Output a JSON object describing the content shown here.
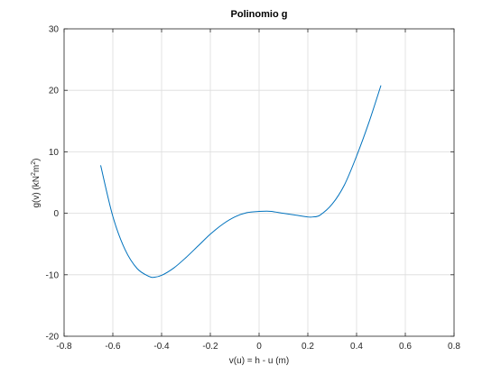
{
  "chart_data": {
    "type": "line",
    "title": "Polinomio g",
    "xlabel": "v(u) = h - u (m)",
    "ylabel": {
      "prefix": "g(v)  (kN",
      "sup1": "2",
      "mid": "m",
      "sup2": "2",
      "suffix": ")"
    },
    "xlim": [
      -0.8,
      0.8
    ],
    "ylim": [
      -20,
      30
    ],
    "xticks": [
      -0.8,
      -0.6,
      -0.4,
      -0.2,
      0,
      0.2,
      0.4,
      0.6,
      0.8
    ],
    "xtick_labels": [
      "-0.8",
      "-0.6",
      "-0.4",
      "-0.2",
      "0",
      "0.2",
      "0.4",
      "0.6",
      "0.8"
    ],
    "yticks": [
      -20,
      -10,
      0,
      10,
      20,
      30
    ],
    "ytick_labels": [
      "-20",
      "-10",
      "0",
      "10",
      "20",
      "30"
    ],
    "grid": true,
    "series": [
      {
        "color": "#0072bd",
        "x": [
          -0.65,
          -0.6,
          -0.55,
          -0.5,
          -0.45,
          -0.43,
          -0.4,
          -0.35,
          -0.3,
          -0.25,
          -0.2,
          -0.15,
          -0.1,
          -0.05,
          0,
          0.03,
          0.05,
          0.1,
          0.15,
          0.2,
          0.22,
          0.25,
          0.3,
          0.35,
          0.4,
          0.45,
          0.5
        ],
        "y": [
          7.8,
          -0.5,
          -5.9,
          -9.0,
          -10.3,
          -10.4,
          -10.1,
          -8.9,
          -7.2,
          -5.3,
          -3.4,
          -1.8,
          -0.6,
          0.1,
          0.3,
          0.35,
          0.3,
          0.0,
          -0.3,
          -0.6,
          -0.6,
          -0.3,
          1.5,
          4.6,
          9.3,
          14.7,
          20.8
        ]
      }
    ]
  }
}
